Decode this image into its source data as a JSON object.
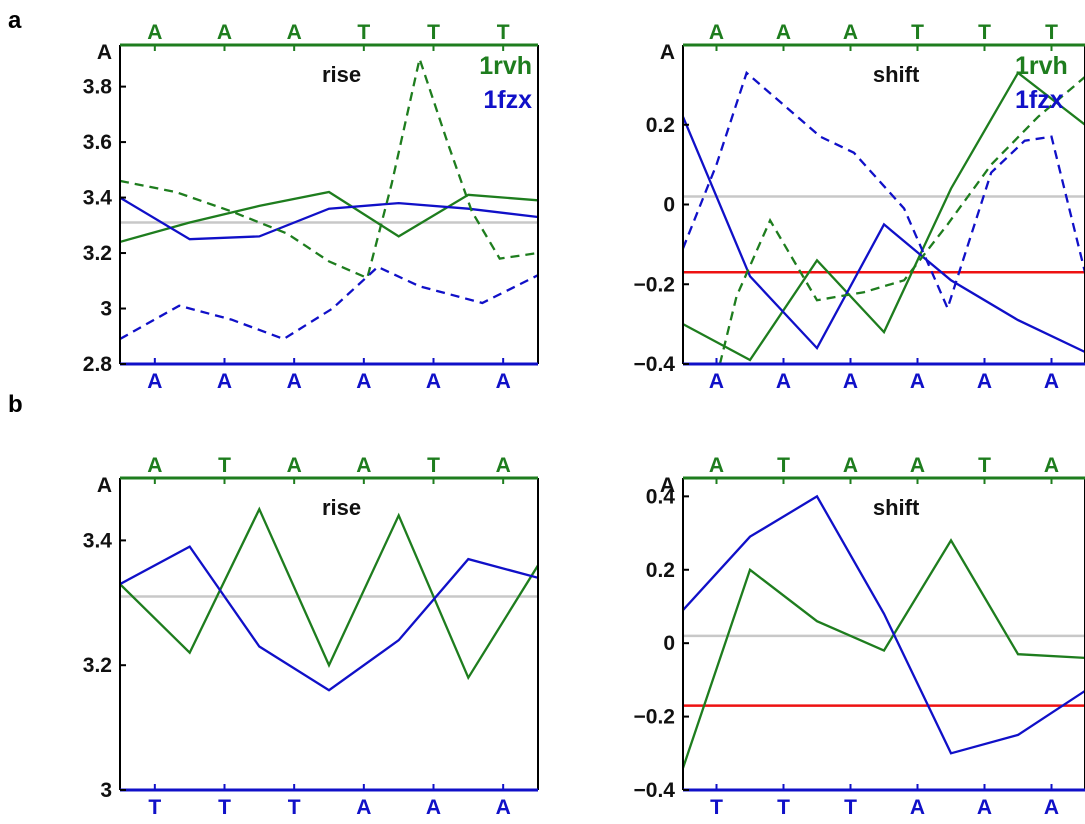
{
  "colors": {
    "green": "#1e7d1e",
    "blue": "#1010c8",
    "red": "#ee1111",
    "gray": "#c8c8c8",
    "black": "#000000"
  },
  "panel_labels": [
    "a",
    "b"
  ],
  "chart_data": [
    {
      "type": "line",
      "panel": "a",
      "title": "rise",
      "corner_label": "A",
      "ylim": [
        2.8,
        3.95
      ],
      "yticks": [
        "2.8",
        "3",
        "3.2",
        "3.4",
        "3.6",
        "3.8"
      ],
      "ytick_values": [
        2.8,
        3.0,
        3.2,
        3.4,
        3.6,
        3.8
      ],
      "top_sequence": [
        "A",
        "A",
        "A",
        "T",
        "T",
        "T"
      ],
      "bottom_sequence": [
        "A",
        "A",
        "A",
        "A",
        "A",
        "A"
      ],
      "legend": [
        "1rvh",
        "1fzx"
      ],
      "hlines": [
        {
          "y": 3.31,
          "color": "gray"
        }
      ],
      "series": [
        {
          "name": "1rvh",
          "color": "green",
          "dash": false,
          "x": [
            0.0,
            1.0,
            2.0,
            3.0,
            4.0,
            5.0,
            6.0
          ],
          "values": [
            3.24,
            3.31,
            3.37,
            3.42,
            3.26,
            3.41,
            3.39
          ]
        },
        {
          "name": "1fzx",
          "color": "blue",
          "dash": false,
          "x": [
            0.0,
            1.0,
            2.0,
            3.0,
            4.0,
            5.0,
            6.0
          ],
          "values": [
            3.4,
            3.25,
            3.26,
            3.36,
            3.38,
            3.36,
            3.33
          ]
        },
        {
          "color": "green",
          "dash": true,
          "x": [
            0.0,
            0.8,
            1.6,
            2.4,
            3.0,
            3.55,
            3.9,
            4.3,
            4.7,
            5.05,
            5.45,
            6.0
          ],
          "values": [
            3.46,
            3.42,
            3.35,
            3.27,
            3.17,
            3.11,
            3.45,
            3.9,
            3.6,
            3.35,
            3.18,
            3.2
          ]
        },
        {
          "color": "blue",
          "dash": true,
          "x": [
            0.0,
            0.85,
            1.6,
            2.35,
            3.05,
            3.7,
            4.3,
            5.2,
            6.0
          ],
          "values": [
            2.89,
            3.01,
            2.96,
            2.89,
            3.0,
            3.15,
            3.08,
            3.02,
            3.12
          ]
        }
      ]
    },
    {
      "type": "line",
      "panel": "a",
      "title": "shift",
      "corner_label": "A",
      "ylim": [
        -0.4,
        0.4
      ],
      "yticks": [
        "-0.4",
        "-0.2",
        "0",
        "0.2"
      ],
      "ytick_values": [
        -0.4,
        -0.2,
        0.0,
        0.2
      ],
      "top_sequence": [
        "A",
        "A",
        "A",
        "T",
        "T",
        "T"
      ],
      "bottom_sequence": [
        "A",
        "A",
        "A",
        "A",
        "A",
        "A"
      ],
      "legend": [
        "1rvh",
        "1fzx"
      ],
      "hlines": [
        {
          "y": 0.02,
          "color": "gray"
        },
        {
          "y": -0.17,
          "color": "red"
        }
      ],
      "series": [
        {
          "name": "1rvh",
          "color": "green",
          "dash": false,
          "x": [
            0.0,
            1.0,
            2.0,
            3.0,
            4.0,
            5.0,
            6.0
          ],
          "values": [
            -0.3,
            -0.39,
            -0.14,
            -0.32,
            0.04,
            0.33,
            0.2
          ]
        },
        {
          "name": "1fzx",
          "color": "blue",
          "dash": false,
          "x": [
            0.0,
            1.0,
            2.0,
            3.0,
            4.0,
            5.0,
            6.0
          ],
          "values": [
            0.22,
            -0.18,
            -0.36,
            -0.05,
            -0.19,
            -0.29,
            -0.37
          ]
        },
        {
          "color": "green",
          "dash": true,
          "x": [
            0.55,
            0.8,
            1.3,
            2.0,
            2.7,
            3.3,
            3.95,
            4.6,
            5.3,
            6.0
          ],
          "values": [
            -0.4,
            -0.23,
            -0.04,
            -0.24,
            -0.22,
            -0.19,
            -0.05,
            0.1,
            0.22,
            0.32
          ]
        },
        {
          "color": "blue",
          "dash": true,
          "x": [
            0.0,
            0.5,
            0.95,
            1.5,
            2.05,
            2.55,
            3.3,
            3.95,
            4.6,
            5.1,
            5.5,
            6.0
          ],
          "values": [
            -0.11,
            0.1,
            0.33,
            0.25,
            0.17,
            0.13,
            -0.01,
            -0.26,
            0.08,
            0.16,
            0.17,
            -0.17
          ]
        }
      ]
    },
    {
      "type": "line",
      "panel": "b",
      "title": "rise",
      "corner_label": "A",
      "ylim": [
        3.0,
        3.5
      ],
      "yticks": [
        "3",
        "3.2",
        "3.4"
      ],
      "ytick_values": [
        3.0,
        3.2,
        3.4
      ],
      "top_sequence": [
        "A",
        "T",
        "A",
        "A",
        "T",
        "A"
      ],
      "bottom_sequence": [
        "T",
        "T",
        "T",
        "A",
        "A",
        "A"
      ],
      "legend": [],
      "hlines": [
        {
          "y": 3.31,
          "color": "gray"
        }
      ],
      "series": [
        {
          "color": "green",
          "dash": false,
          "x": [
            0.0,
            1.0,
            2.0,
            3.0,
            4.0,
            5.0,
            6.0
          ],
          "values": [
            3.33,
            3.22,
            3.45,
            3.2,
            3.44,
            3.18,
            3.36
          ]
        },
        {
          "color": "blue",
          "dash": false,
          "x": [
            0.0,
            1.0,
            2.0,
            3.0,
            4.0,
            5.0,
            6.0
          ],
          "values": [
            3.33,
            3.39,
            3.23,
            3.16,
            3.24,
            3.37,
            3.34
          ]
        }
      ]
    },
    {
      "type": "line",
      "panel": "b",
      "title": "shift",
      "corner_label": "A",
      "ylim": [
        -0.4,
        0.45
      ],
      "yticks": [
        "-0.4",
        "-0.2",
        "0",
        "0.2",
        "0.4"
      ],
      "ytick_values": [
        -0.4,
        -0.2,
        0.0,
        0.2,
        0.4
      ],
      "top_sequence": [
        "A",
        "T",
        "A",
        "A",
        "T",
        "A"
      ],
      "bottom_sequence": [
        "T",
        "T",
        "T",
        "A",
        "A",
        "A"
      ],
      "legend": [],
      "hlines": [
        {
          "y": 0.02,
          "color": "gray"
        },
        {
          "y": -0.17,
          "color": "red"
        }
      ],
      "series": [
        {
          "color": "green",
          "dash": false,
          "x": [
            0.0,
            1.0,
            2.0,
            3.0,
            4.0,
            5.0,
            6.0
          ],
          "values": [
            -0.34,
            0.2,
            0.06,
            -0.02,
            0.28,
            -0.03,
            -0.04
          ]
        },
        {
          "color": "blue",
          "dash": false,
          "x": [
            0.0,
            1.0,
            2.0,
            3.0,
            4.0,
            5.0,
            6.0
          ],
          "values": [
            0.09,
            0.29,
            0.4,
            0.08,
            -0.3,
            -0.25,
            -0.13
          ]
        }
      ]
    }
  ]
}
